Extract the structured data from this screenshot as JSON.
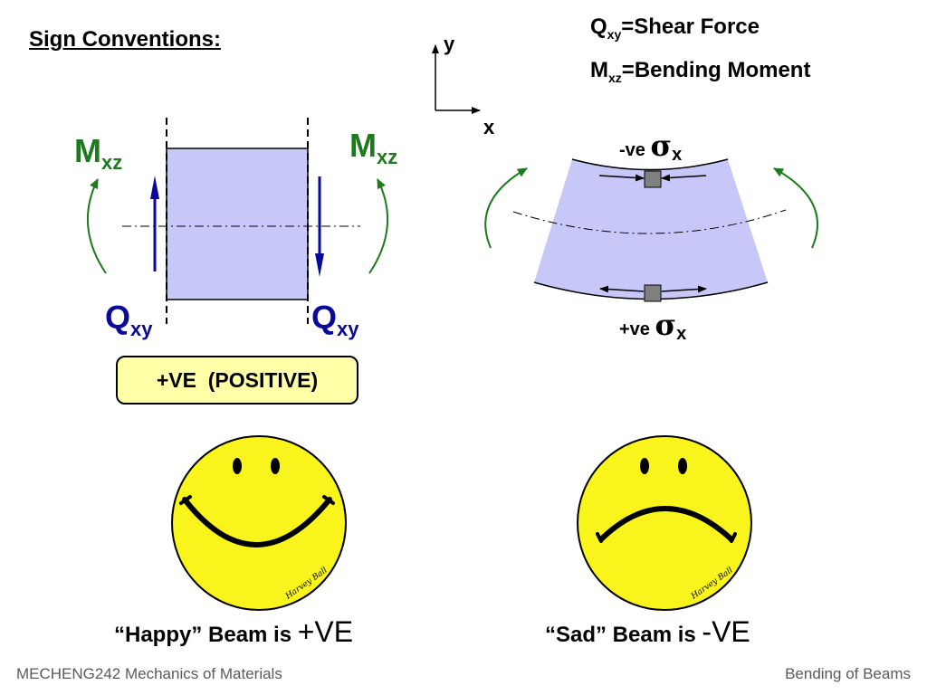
{
  "header": {
    "title": "Sign Conventions:",
    "legend_shear": "Q",
    "legend_shear_sub": "xy",
    "legend_shear_text": "=Shear Force",
    "legend_moment": "M",
    "legend_moment_sub": "xz",
    "legend_moment_text": "=Bending Moment"
  },
  "axes": {
    "y": "y",
    "x": "x"
  },
  "element": {
    "m_left": "M",
    "m_left_sub": "xz",
    "m_right": "M",
    "m_right_sub": "xz",
    "q_left": "Q",
    "q_left_sub": "xy",
    "q_right": "Q",
    "q_right_sub": "xy",
    "badge": "+VE  (POSITIVE)"
  },
  "bent_beam": {
    "top_label": "-ve",
    "top_sigma": "σ",
    "top_sub": "x",
    "bottom_label": "+ve",
    "bottom_sigma": "σ",
    "bottom_sub": "x"
  },
  "faces": {
    "happy_caption": "“Happy” Beam is ",
    "happy_sign": "+VE",
    "sad_caption": "“Sad” Beam is ",
    "sad_sign": "-VE",
    "signature": "Harvey Ball"
  },
  "footer": {
    "left": "MECHENG242 Mechanics of Materials",
    "right": "Bending of Beams"
  },
  "colors": {
    "element_fill": "#c8c8f8",
    "moment_green": "#1e7a1e",
    "shear_blue": "#0a0a9a",
    "badge_fill": "#ffffa8",
    "face_yellow": "#f8f41c",
    "footer_gray": "#5a5a5a"
  }
}
